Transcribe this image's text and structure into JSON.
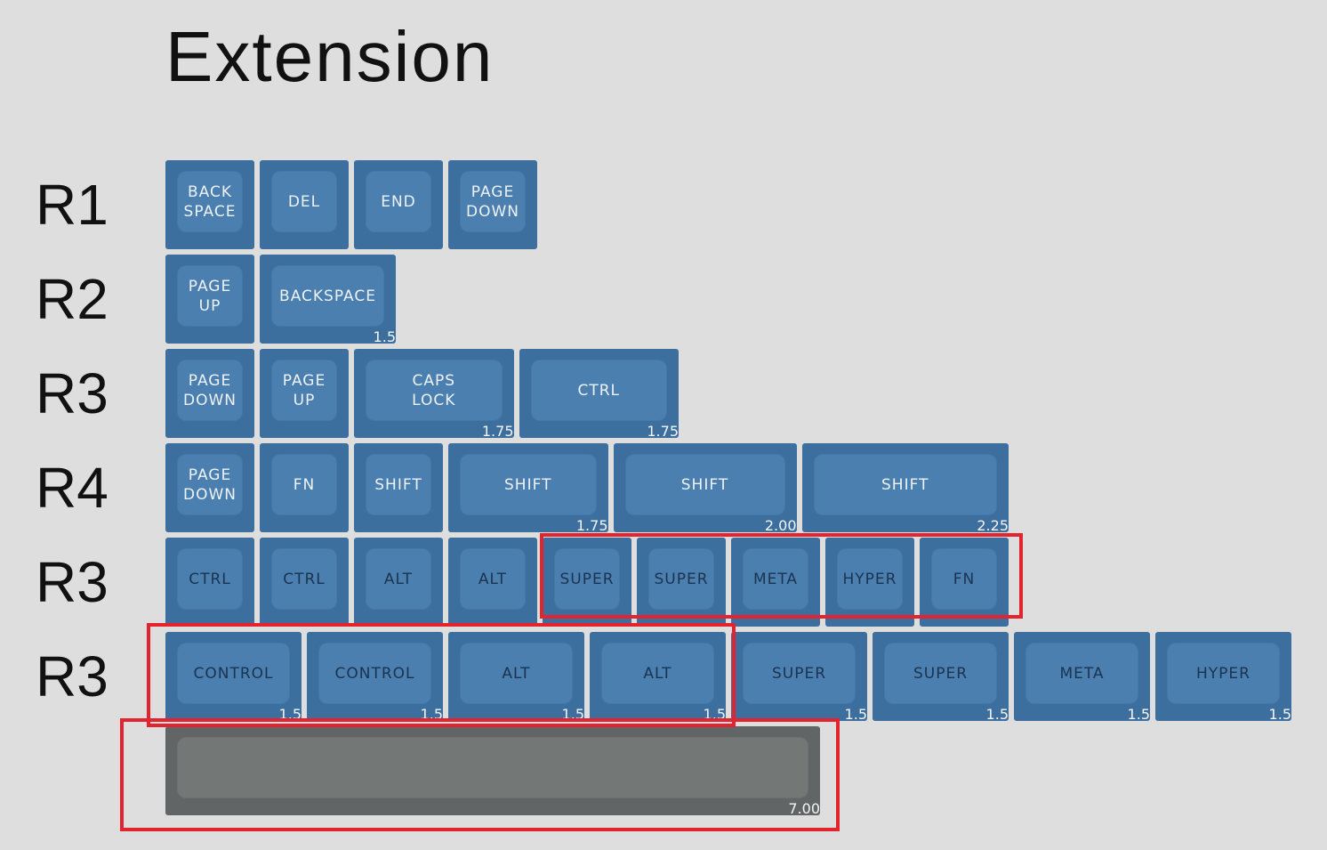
{
  "title": "Extension",
  "rows": [
    {
      "label": "R1",
      "keys": [
        {
          "label": [
            "BACK",
            "SPACE"
          ]
        },
        {
          "label": [
            "DEL"
          ]
        },
        {
          "label": [
            "END"
          ]
        },
        {
          "label": [
            "PAGE",
            "DOWN"
          ]
        }
      ]
    },
    {
      "label": "R2",
      "keys": [
        {
          "label": [
            "PAGE",
            "UP"
          ]
        },
        {
          "label": [
            "BACKSPACE"
          ],
          "size": "1.5"
        }
      ]
    },
    {
      "label": "R3",
      "keys": [
        {
          "label": [
            "PAGE",
            "DOWN"
          ]
        },
        {
          "label": [
            "PAGE",
            "UP"
          ]
        },
        {
          "label": [
            "CAPS",
            "LOCK"
          ],
          "size": "1.75"
        },
        {
          "label": [
            "CTRL"
          ],
          "size": "1.75"
        }
      ]
    },
    {
      "label": "R4",
      "keys": [
        {
          "label": [
            "PAGE",
            "DOWN"
          ]
        },
        {
          "label": [
            "FN"
          ]
        },
        {
          "label": [
            "SHIFT"
          ]
        },
        {
          "label": [
            "SHIFT"
          ],
          "size": "1.75"
        },
        {
          "label": [
            "SHIFT"
          ],
          "size": "2.00"
        },
        {
          "label": [
            "SHIFT"
          ],
          "size": "2.25"
        }
      ]
    },
    {
      "label": "R3",
      "keys": [
        {
          "label": [
            "CTRL"
          ]
        },
        {
          "label": [
            "CTRL"
          ]
        },
        {
          "label": [
            "ALT"
          ]
        },
        {
          "label": [
            "ALT"
          ]
        },
        {
          "label": [
            "SUPER"
          ]
        },
        {
          "label": [
            "SUPER"
          ]
        },
        {
          "label": [
            "META"
          ]
        },
        {
          "label": [
            "HYPER"
          ]
        },
        {
          "label": [
            "FN"
          ]
        }
      ]
    },
    {
      "label": "R3",
      "keys": [
        {
          "label": [
            "CONTROL"
          ],
          "size": "1.5"
        },
        {
          "label": [
            "CONTROL"
          ],
          "size": "1.5"
        },
        {
          "label": [
            "ALT"
          ],
          "size": "1.5"
        },
        {
          "label": [
            "ALT"
          ],
          "size": "1.5"
        },
        {
          "label": [
            "SUPER"
          ],
          "size": "1.5"
        },
        {
          "label": [
            "SUPER"
          ],
          "size": "1.5"
        },
        {
          "label": [
            "META"
          ],
          "size": "1.5"
        },
        {
          "label": [
            "HYPER"
          ],
          "size": "1.5"
        }
      ]
    },
    {
      "keys": [
        {
          "label": [],
          "size": "7.00"
        }
      ]
    }
  ]
}
